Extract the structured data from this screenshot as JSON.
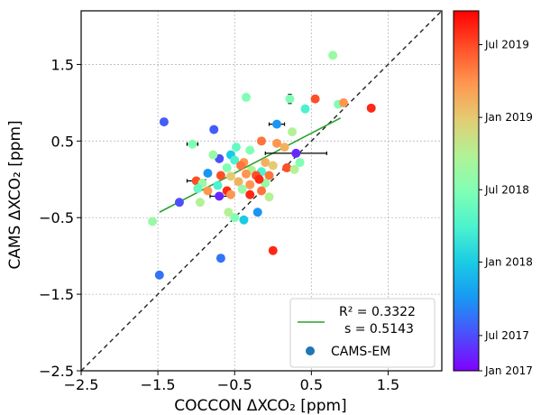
{
  "chart_data": {
    "type": "scatter",
    "xlabel": "COCCON ΔXCO₂ [ppm]",
    "ylabel": "CAMS ΔXCO₂ [ppm]",
    "xlim": [
      -2.5,
      2.2
    ],
    "ylim": [
      -2.5,
      2.2
    ],
    "x_ticks": [
      "-2.5",
      "-1.5",
      "-0.5",
      "0.5",
      "1.5"
    ],
    "y_ticks": [
      "-2.5",
      "-1.5",
      "-0.5",
      "0.5",
      "1.5"
    ],
    "grid": true,
    "one_to_one_line": {
      "style": "dashed",
      "color": "#222222"
    },
    "fit_line": {
      "x": [
        -1.48,
        0.88
      ],
      "y": [
        -0.43,
        0.8
      ],
      "color": "#2ca02c"
    },
    "series_name": "CAMS-EM",
    "legend": {
      "r2_label": "R² = 0.3322",
      "s_label": "s = 0.5143",
      "series_label": "CAMS-EM",
      "placement": "lower-right"
    },
    "colorbar": {
      "colormap": "rainbow",
      "tick_labels": [
        "Jul 2019",
        "Jan 2019",
        "Jul 2018",
        "Jan 2018",
        "Jul 2017",
        "Jan 2017"
      ],
      "tick_values": [
        0.906,
        0.704,
        0.503,
        0.302,
        0.098,
        0.0
      ]
    },
    "points": [
      {
        "x": 0.78,
        "y": 1.62,
        "c": 0.55
      },
      {
        "x": -0.35,
        "y": 1.07,
        "c": 0.5
      },
      {
        "x": 0.22,
        "y": 1.05,
        "c": 0.5,
        "xerr": 0.02,
        "yerr": 0.06
      },
      {
        "x": 0.55,
        "y": 1.05,
        "c": 0.9
      },
      {
        "x": 0.42,
        "y": 0.92,
        "c": 0.4,
        "yerr": 0.04
      },
      {
        "x": 0.85,
        "y": 0.98,
        "c": 0.5
      },
      {
        "x": 0.92,
        "y": 1.0,
        "c": 0.8
      },
      {
        "x": 1.28,
        "y": 0.93,
        "c": 0.95
      },
      {
        "x": -1.42,
        "y": 0.75,
        "c": 0.12
      },
      {
        "x": 0.05,
        "y": 0.72,
        "c": 0.2,
        "xerr": 0.1
      },
      {
        "x": -0.77,
        "y": 0.65,
        "c": 0.12
      },
      {
        "x": 0.25,
        "y": 0.62,
        "c": 0.6
      },
      {
        "x": -1.05,
        "y": 0.46,
        "c": 0.5,
        "xerr": 0.07
      },
      {
        "x": -0.15,
        "y": 0.5,
        "c": 0.85
      },
      {
        "x": 0.05,
        "y": 0.47,
        "c": 0.8
      },
      {
        "x": 0.15,
        "y": 0.42,
        "c": 0.75
      },
      {
        "x": -0.48,
        "y": 0.42,
        "c": 0.45
      },
      {
        "x": 0.3,
        "y": 0.34,
        "c": 0.05,
        "xerr": 0.4
      },
      {
        "x": -0.3,
        "y": 0.38,
        "c": 0.5
      },
      {
        "x": -0.55,
        "y": 0.32,
        "c": 0.3
      },
      {
        "x": -0.7,
        "y": 0.27,
        "c": 0.1
      },
      {
        "x": -0.78,
        "y": 0.32,
        "c": 0.55
      },
      {
        "x": -0.5,
        "y": 0.25,
        "c": 0.4
      },
      {
        "x": -0.38,
        "y": 0.22,
        "c": 0.8
      },
      {
        "x": -0.1,
        "y": 0.22,
        "c": 0.75
      },
      {
        "x": 0.0,
        "y": 0.18,
        "c": 0.7
      },
      {
        "x": 0.35,
        "y": 0.22,
        "c": 0.5
      },
      {
        "x": -0.6,
        "y": 0.15,
        "c": 0.5
      },
      {
        "x": -0.42,
        "y": 0.18,
        "c": 0.85
      },
      {
        "x": -0.28,
        "y": 0.12,
        "c": 0.6
      },
      {
        "x": -0.15,
        "y": 0.1,
        "c": 0.4
      },
      {
        "x": 0.18,
        "y": 0.15,
        "c": 0.9
      },
      {
        "x": 0.28,
        "y": 0.13,
        "c": 0.6
      },
      {
        "x": -0.85,
        "y": 0.08,
        "c": 0.2
      },
      {
        "x": -0.68,
        "y": 0.05,
        "c": 0.9
      },
      {
        "x": -0.55,
        "y": 0.04,
        "c": 0.7
      },
      {
        "x": -0.35,
        "y": 0.07,
        "c": 0.8
      },
      {
        "x": -0.22,
        "y": 0.05,
        "c": 0.9
      },
      {
        "x": -0.05,
        "y": 0.05,
        "c": 0.85
      },
      {
        "x": -1.0,
        "y": -0.02,
        "c": 0.9,
        "xerr": 0.12
      },
      {
        "x": -0.92,
        "y": -0.05,
        "c": 0.55
      },
      {
        "x": -0.72,
        "y": -0.08,
        "c": 0.4
      },
      {
        "x": -0.45,
        "y": -0.03,
        "c": 0.75
      },
      {
        "x": -0.3,
        "y": -0.07,
        "c": 0.8
      },
      {
        "x": -0.1,
        "y": -0.05,
        "c": 0.55
      },
      {
        "x": -0.18,
        "y": 0.0,
        "c": 0.95
      },
      {
        "x": -0.98,
        "y": -0.12,
        "c": 0.45
      },
      {
        "x": -0.85,
        "y": -0.15,
        "c": 0.8
      },
      {
        "x": -0.6,
        "y": -0.15,
        "c": 0.95
      },
      {
        "x": -0.4,
        "y": -0.13,
        "c": 0.55
      },
      {
        "x": -0.15,
        "y": -0.15,
        "c": 0.85
      },
      {
        "x": -0.7,
        "y": -0.22,
        "c": 0.05,
        "xerr": 0.12
      },
      {
        "x": -0.55,
        "y": -0.2,
        "c": 0.8
      },
      {
        "x": -0.3,
        "y": -0.2,
        "c": 0.95
      },
      {
        "x": -0.05,
        "y": -0.23,
        "c": 0.6
      },
      {
        "x": -0.95,
        "y": -0.3,
        "c": 0.6
      },
      {
        "x": -1.22,
        "y": -0.3,
        "c": 0.1
      },
      {
        "x": -0.58,
        "y": -0.43,
        "c": 0.6
      },
      {
        "x": -0.2,
        "y": -0.43,
        "c": 0.2
      },
      {
        "x": -0.5,
        "y": -0.5,
        "c": 0.5
      },
      {
        "x": -0.38,
        "y": -0.53,
        "c": 0.3
      },
      {
        "x": -1.57,
        "y": -0.55,
        "c": 0.55
      },
      {
        "x": 0.0,
        "y": -0.93,
        "c": 0.95
      },
      {
        "x": -0.68,
        "y": -1.03,
        "c": 0.15
      },
      {
        "x": -1.48,
        "y": -1.25,
        "c": 0.15
      }
    ]
  }
}
